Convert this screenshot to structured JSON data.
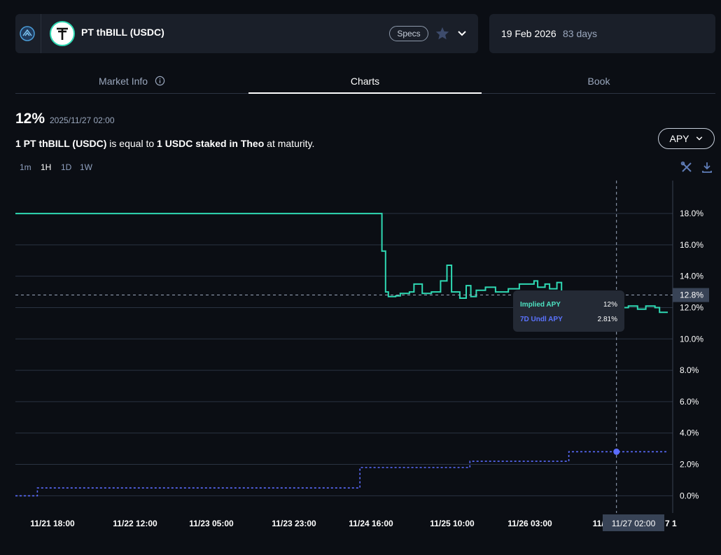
{
  "header": {
    "market_title": "PT thBILL (USDC)",
    "specs_label": "Specs",
    "maturity_date": "19 Feb 2026",
    "days_left": "83 days"
  },
  "tabs": [
    {
      "label": "Market Info"
    },
    {
      "label": "Charts"
    },
    {
      "label": "Book"
    }
  ],
  "summary": {
    "apy": "12%",
    "timestamp": "2025/11/27 02:00",
    "desc_bold1": "1 PT thBILL (USDC)",
    "desc_mid": " is equal to ",
    "desc_bold2": "1 USDC staked in Theo",
    "desc_end": " at maturity.",
    "metric_select": "APY"
  },
  "timeframes": [
    "1m",
    "1H",
    "1D",
    "1W"
  ],
  "active_timeframe": "1H",
  "tooltip": {
    "implied_label": "Implied APY",
    "implied_value": "12%",
    "undl_label": "7D Undl APY",
    "undl_value": "2.81%"
  },
  "colors": {
    "implied": "#2fd9b3",
    "underlying": "#5b6cff",
    "background": "#0b0e14"
  },
  "chart_data": {
    "type": "line",
    "x_ticks": [
      "11/21 18:00",
      "11/22 12:00",
      "11/23 05:00",
      "11/23 23:00",
      "11/24 16:00",
      "11/25 10:00",
      "11/26 03:00",
      "11/2"
    ],
    "crosshair_x_label": "11/27 02:00",
    "crosshair_y_label": "12.8%",
    "y_ticks": [
      "18.0%",
      "16.0%",
      "14.0%",
      "12.0%",
      "10.0%",
      "8.0%",
      "6.0%",
      "4.0%",
      "2.0%",
      "0.0%"
    ],
    "ylim": [
      -1.1,
      20.1
    ],
    "grid": true,
    "series": [
      {
        "name": "Implied APY",
        "style": "step-solid",
        "points": [
          [
            0,
            18.0
          ],
          [
            40.0,
            18.0
          ],
          [
            40.0,
            15.6
          ],
          [
            40.4,
            15.6
          ],
          [
            40.4,
            13.0
          ],
          [
            40.7,
            13.0
          ],
          [
            40.7,
            12.7
          ],
          [
            41.5,
            12.7
          ],
          [
            41.5,
            12.75
          ],
          [
            42.0,
            12.75
          ],
          [
            42.0,
            12.9
          ],
          [
            43.0,
            12.9
          ],
          [
            43.0,
            13.0
          ],
          [
            43.5,
            13.0
          ],
          [
            43.5,
            13.5
          ],
          [
            44.4,
            13.5
          ],
          [
            44.4,
            12.9
          ],
          [
            45.4,
            12.9
          ],
          [
            45.4,
            13.0
          ],
          [
            46.4,
            13.0
          ],
          [
            46.4,
            13.7
          ],
          [
            47.1,
            13.7
          ],
          [
            47.1,
            14.7
          ],
          [
            47.6,
            14.7
          ],
          [
            47.6,
            13.0
          ],
          [
            48.5,
            13.0
          ],
          [
            48.5,
            12.6
          ],
          [
            49.2,
            12.6
          ],
          [
            49.2,
            13.4
          ],
          [
            49.7,
            13.4
          ],
          [
            49.7,
            12.7
          ],
          [
            50.3,
            12.7
          ],
          [
            50.3,
            13.1
          ],
          [
            51.3,
            13.1
          ],
          [
            51.3,
            13.3
          ],
          [
            52.4,
            13.3
          ],
          [
            52.4,
            13.0
          ],
          [
            53.8,
            13.0
          ],
          [
            53.8,
            13.2
          ],
          [
            55.0,
            13.2
          ],
          [
            55.0,
            13.5
          ],
          [
            56.6,
            13.5
          ],
          [
            56.6,
            13.7
          ],
          [
            57.0,
            13.7
          ],
          [
            57.0,
            13.3
          ],
          [
            57.8,
            13.3
          ],
          [
            57.8,
            13.5
          ],
          [
            58.3,
            13.5
          ],
          [
            58.3,
            13.2
          ],
          [
            59.1,
            13.2
          ],
          [
            59.1,
            13.6
          ],
          [
            59.6,
            13.6
          ],
          [
            59.6,
            13.0
          ],
          [
            65.6,
            13.0
          ],
          [
            65.6,
            12.0
          ],
          [
            66.9,
            12.0
          ],
          [
            66.9,
            12.1
          ],
          [
            67.9,
            12.1
          ],
          [
            67.9,
            11.9
          ],
          [
            68.8,
            11.9
          ],
          [
            68.8,
            12.1
          ],
          [
            69.8,
            12.1
          ],
          [
            69.8,
            12.0
          ],
          [
            70.3,
            12.0
          ],
          [
            70.3,
            11.7
          ],
          [
            71.2,
            11.7
          ]
        ]
      },
      {
        "name": "7D Undl APY",
        "style": "step-dashed",
        "points": [
          [
            0,
            0.0
          ],
          [
            2.4,
            0.0
          ],
          [
            2.4,
            0.5
          ],
          [
            37.6,
            0.5
          ],
          [
            37.6,
            1.8
          ],
          [
            49.6,
            1.8
          ],
          [
            49.6,
            2.2
          ],
          [
            60.4,
            2.2
          ],
          [
            60.4,
            2.81
          ],
          [
            71.2,
            2.81
          ]
        ]
      }
    ],
    "crosshair": {
      "x": 65.6,
      "implied": 12.0,
      "underlying": 2.81,
      "ref_level": 12.8
    }
  }
}
